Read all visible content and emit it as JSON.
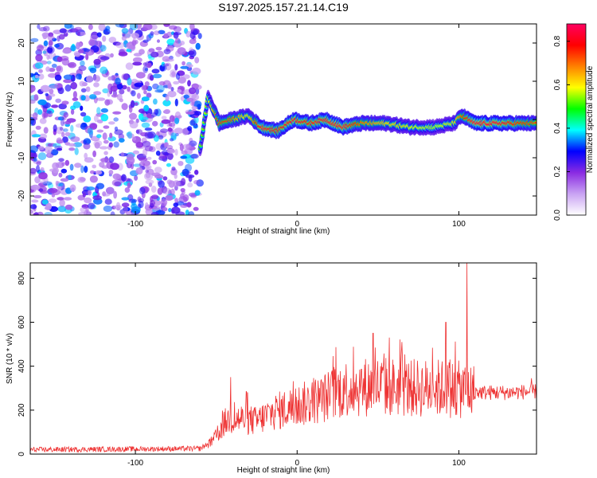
{
  "page": {
    "title": "S197.2025.157.21.14.C19"
  },
  "chart_data": [
    {
      "type": "heatmap",
      "title": "S197.2025.157.21.14.C19",
      "xlabel": "Height of straight line (km)",
      "ylabel": "Frequency (Hz)",
      "xlim": [
        -165,
        148
      ],
      "ylim": [
        -25,
        25
      ],
      "x_ticks": [
        -100,
        0,
        100
      ],
      "y_ticks": [
        -20,
        -10,
        0,
        10,
        20
      ],
      "colorbar": {
        "label": "Normalized spectral amplitude",
        "range": [
          0,
          0.88
        ],
        "ticks": [
          0.0,
          0.2,
          0.4,
          0.6,
          0.8
        ],
        "colormap": [
          "#ffffff",
          "#c9a3f3",
          "#8a2be2",
          "#0000ff",
          "#00ffff",
          "#00ff00",
          "#ffff00",
          "#ff8000",
          "#ff0000",
          "#ff0060"
        ]
      },
      "noise_region_x": [
        -165,
        -60
      ],
      "ridge": [
        {
          "x": -60,
          "f": -8,
          "a": 0.45
        },
        {
          "x": -55,
          "f": 6,
          "a": 0.5
        },
        {
          "x": -48,
          "f": -1,
          "a": 0.75
        },
        {
          "x": -40,
          "f": 0,
          "a": 0.7
        },
        {
          "x": -30,
          "f": 1,
          "a": 0.55
        },
        {
          "x": -22,
          "f": -2,
          "a": 0.85
        },
        {
          "x": -12,
          "f": -3,
          "a": 0.8
        },
        {
          "x": -2,
          "f": 0,
          "a": 0.85
        },
        {
          "x": 8,
          "f": -1,
          "a": 0.8
        },
        {
          "x": 18,
          "f": 0,
          "a": 0.85
        },
        {
          "x": 28,
          "f": -2,
          "a": 0.85
        },
        {
          "x": 40,
          "f": -1,
          "a": 0.7
        },
        {
          "x": 55,
          "f": -1,
          "a": 0.6
        },
        {
          "x": 70,
          "f": -2,
          "a": 0.55
        },
        {
          "x": 85,
          "f": -2,
          "a": 0.5
        },
        {
          "x": 97,
          "f": -1,
          "a": 0.55
        },
        {
          "x": 102,
          "f": 1,
          "a": 0.7
        },
        {
          "x": 110,
          "f": -1,
          "a": 0.88
        },
        {
          "x": 125,
          "f": -1,
          "a": 0.85
        },
        {
          "x": 140,
          "f": -1,
          "a": 0.75
        },
        {
          "x": 148,
          "f": -1,
          "a": 0.7
        }
      ]
    },
    {
      "type": "line",
      "xlabel": "Height of straight line (km)",
      "ylabel": "SNR (10 * v/v)",
      "xlim": [
        -165,
        148
      ],
      "ylim": [
        0,
        870
      ],
      "x_ticks": [
        -100,
        0,
        100
      ],
      "y_ticks": [
        0,
        200,
        400,
        600,
        800
      ],
      "color": "#ee3333",
      "envelope": [
        {
          "x": -165,
          "y": 20
        },
        {
          "x": -60,
          "y": 25
        },
        {
          "x": -52,
          "y": 60
        },
        {
          "x": -44,
          "y": 150
        },
        {
          "x": -35,
          "y": 160
        },
        {
          "x": -25,
          "y": 150
        },
        {
          "x": -15,
          "y": 190
        },
        {
          "x": 0,
          "y": 220
        },
        {
          "x": 15,
          "y": 250
        },
        {
          "x": 30,
          "y": 300
        },
        {
          "x": 50,
          "y": 310
        },
        {
          "x": 70,
          "y": 300
        },
        {
          "x": 90,
          "y": 300
        },
        {
          "x": 105,
          "y": 290
        },
        {
          "x": 115,
          "y": 280
        },
        {
          "x": 130,
          "y": 280
        },
        {
          "x": 148,
          "y": 285
        }
      ],
      "peaks": [
        {
          "x": -41,
          "y": 350
        },
        {
          "x": 47,
          "y": 550
        },
        {
          "x": 57,
          "y": 530
        },
        {
          "x": 92,
          "y": 600
        },
        {
          "x": 105,
          "y": 870
        },
        {
          "x": 145,
          "y": 345
        }
      ]
    }
  ]
}
